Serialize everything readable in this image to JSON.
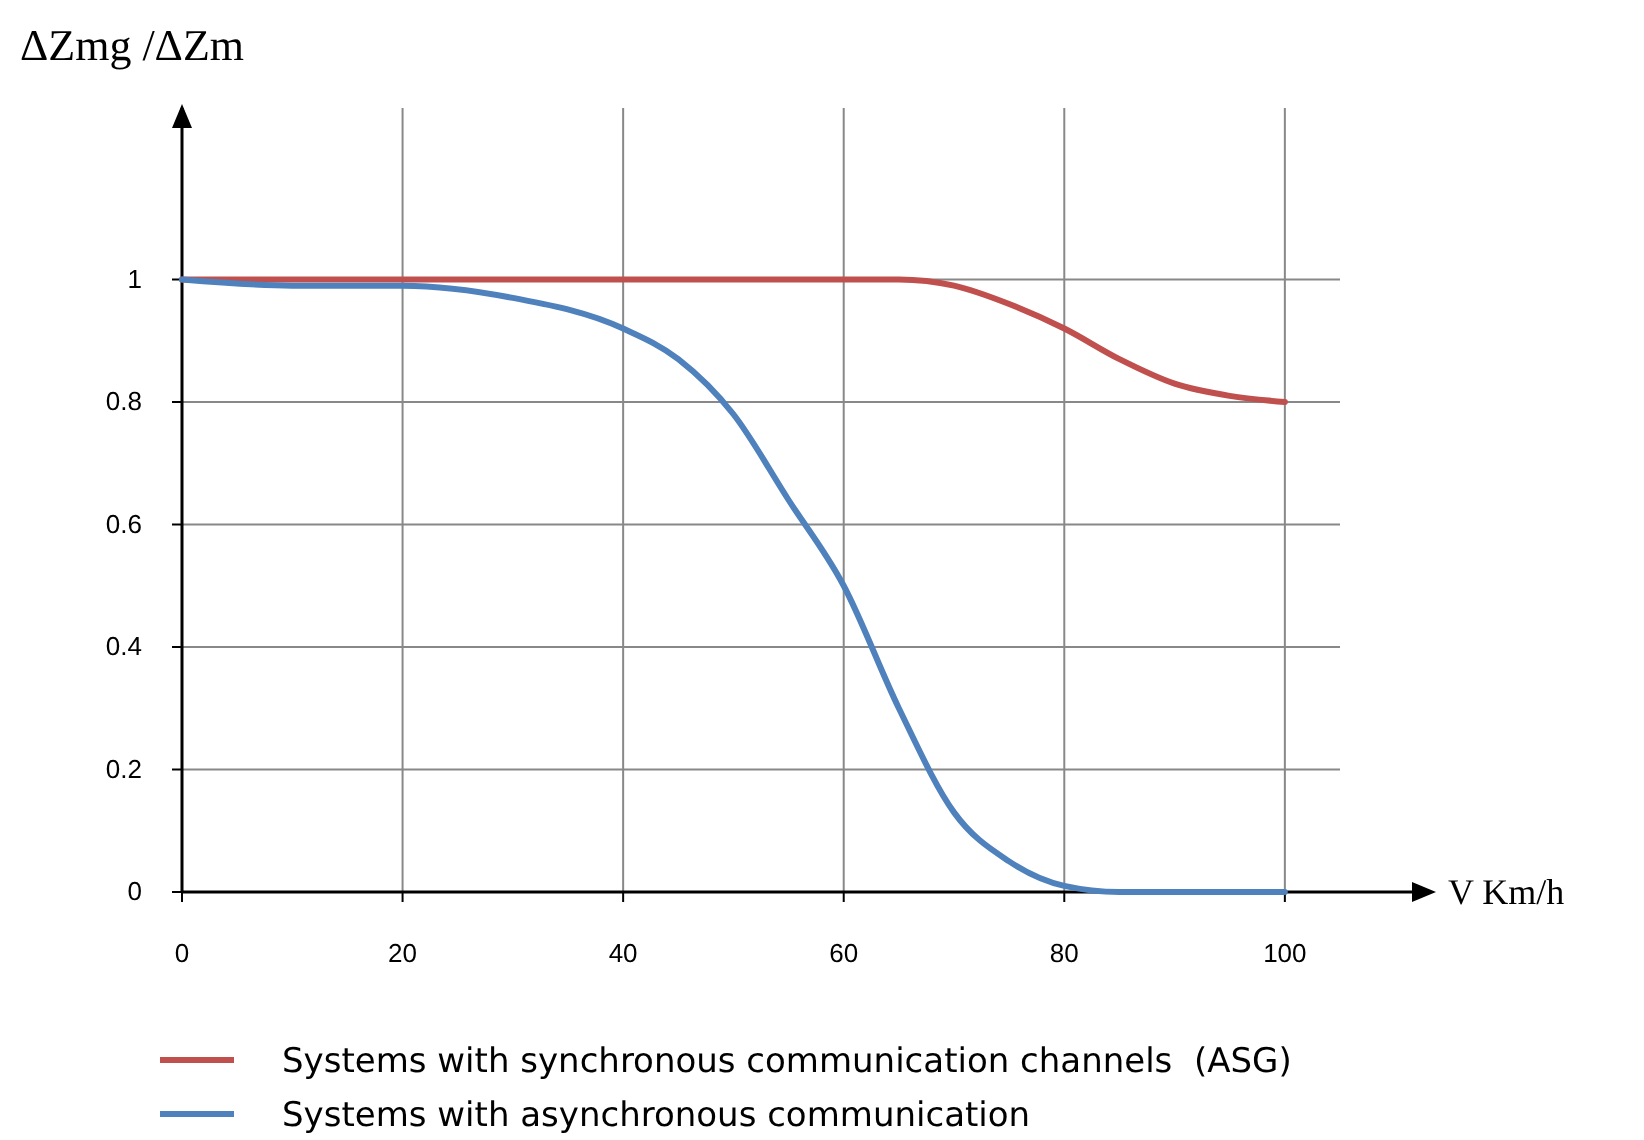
{
  "chart_data": {
    "type": "line",
    "xlabel": "V Km/h",
    "ylabel": "ΔZmg /ΔZm",
    "xlim": [
      0,
      105
    ],
    "ylim": [
      0,
      1.28
    ],
    "xticks": [
      0,
      20,
      40,
      60,
      80,
      100
    ],
    "yticks": [
      0,
      0.2,
      0.4,
      0.6,
      0.8,
      1
    ],
    "grid": true,
    "legend": "bottom",
    "marker": "none",
    "line_style": "solid",
    "series": [
      {
        "name": "Systems with synchronous communication channels  (ASG)",
        "color": "#c0504d",
        "x": [
          0,
          20,
          40,
          60,
          65,
          70,
          75,
          80,
          85,
          90,
          95,
          100
        ],
        "values": [
          1,
          1,
          1,
          1,
          1,
          0.99,
          0.96,
          0.92,
          0.87,
          0.83,
          0.81,
          0.8
        ]
      },
      {
        "name": "Systems with asynchronous communication",
        "color": "#4f81bd",
        "x": [
          0,
          10,
          20,
          30,
          40,
          45,
          50,
          55,
          60,
          65,
          70,
          75,
          80,
          85,
          90,
          100
        ],
        "values": [
          1,
          0.99,
          0.99,
          0.97,
          0.92,
          0.87,
          0.78,
          0.64,
          0.5,
          0.3,
          0.13,
          0.05,
          0.01,
          0,
          0,
          0
        ]
      }
    ]
  }
}
